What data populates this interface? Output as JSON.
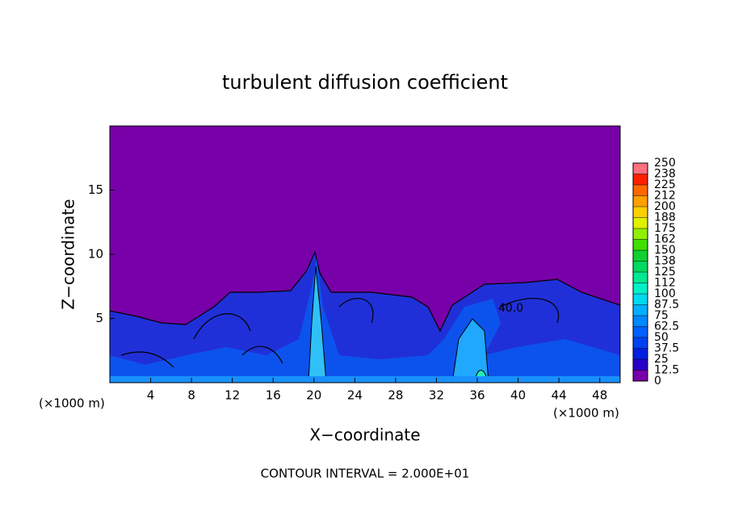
{
  "chart_data": {
    "type": "contour",
    "title": "turbulent diffusion coefficient",
    "xlabel": "X−coordinate",
    "ylabel": "Z−coordinate",
    "x_unit_left": "(×1000 m)",
    "x_unit_right": "(×1000 m)",
    "footer": "CONTOUR INTERVAL = 2.000E+01",
    "contour_label": "40.0",
    "xlim": [
      0,
      50
    ],
    "xticks": [
      4,
      8,
      12,
      16,
      20,
      24,
      28,
      32,
      36,
      40,
      44,
      48
    ],
    "ylim": [
      0,
      20
    ],
    "yticks": [
      5,
      10,
      15
    ],
    "colorbar": {
      "clim": [
        0,
        250
      ],
      "ticks": [
        0,
        12.5,
        25,
        37.5,
        50,
        62.5,
        75,
        87.5,
        100,
        {
          "value": 112.5,
          "label": "112"
        },
        125,
        {
          "value": 137.5,
          "label": "138"
        },
        150,
        {
          "value": 162.5,
          "label": "162"
        },
        175,
        {
          "value": 187.5,
          "label": "188"
        },
        200,
        {
          "value": 212.5,
          "label": "212"
        },
        225,
        {
          "value": 237.5,
          "label": "238"
        },
        250
      ],
      "colors": [
        "#7800a8",
        "#2a00c8",
        "#0020e0",
        "#0040f0",
        "#0060ff",
        "#0088ff",
        "#00b0ff",
        "#00d8f0",
        "#00f0c8",
        "#00e890",
        "#00d860",
        "#10d030",
        "#40e000",
        "#90f000",
        "#e0f000",
        "#ffd000",
        "#ffa000",
        "#ff6800",
        "#ff2000",
        "#ff7080"
      ]
    }
  }
}
